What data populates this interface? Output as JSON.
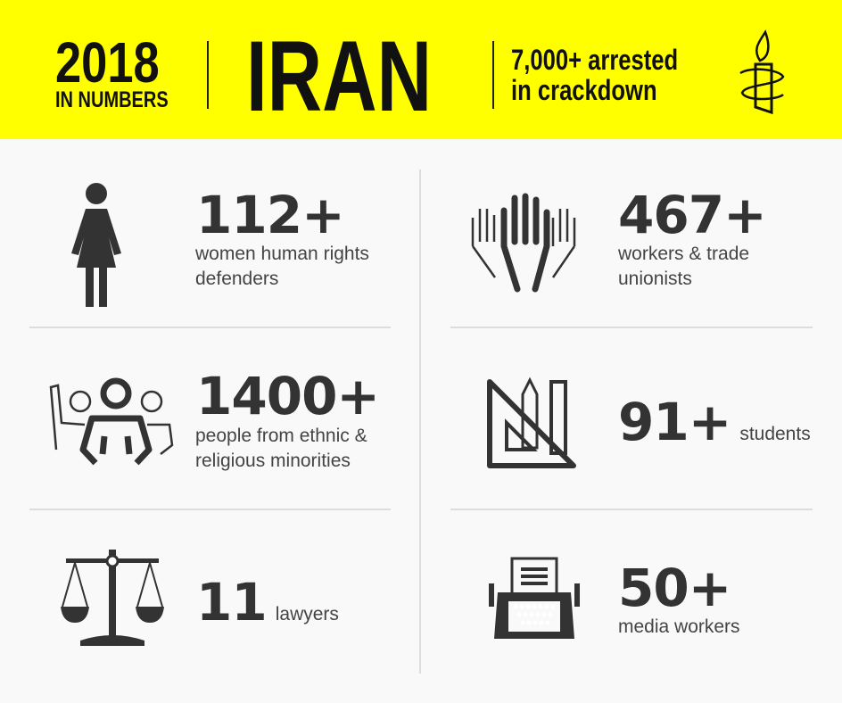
{
  "header": {
    "year": "2018",
    "year_sub": "IN NUMBERS",
    "country": "IRAN",
    "headline_line1": "7,000+ arrested",
    "headline_line2": "in crackdown",
    "logo_icon": "candle-barbed-wire-icon",
    "background_color": "#ffff00"
  },
  "stats": [
    {
      "icon": "woman-icon",
      "number": "112+",
      "label_line1": "women human rights",
      "label_line2": "defenders"
    },
    {
      "icon": "raised-hands-icon",
      "number": "467+",
      "label_line1": "workers & trade",
      "label_line2": "unionists"
    },
    {
      "icon": "group-people-icon",
      "number": "1400+",
      "label_line1": "people from ethnic &",
      "label_line2": "religious minorities"
    },
    {
      "icon": "ruler-triangle-pencil-icon",
      "number": "91+",
      "label_line1": "students"
    },
    {
      "icon": "scales-of-justice-icon",
      "number": "11",
      "label_line1": "lawyers"
    },
    {
      "icon": "typewriter-icon",
      "number": "50+",
      "label_line1": "media workers"
    }
  ]
}
